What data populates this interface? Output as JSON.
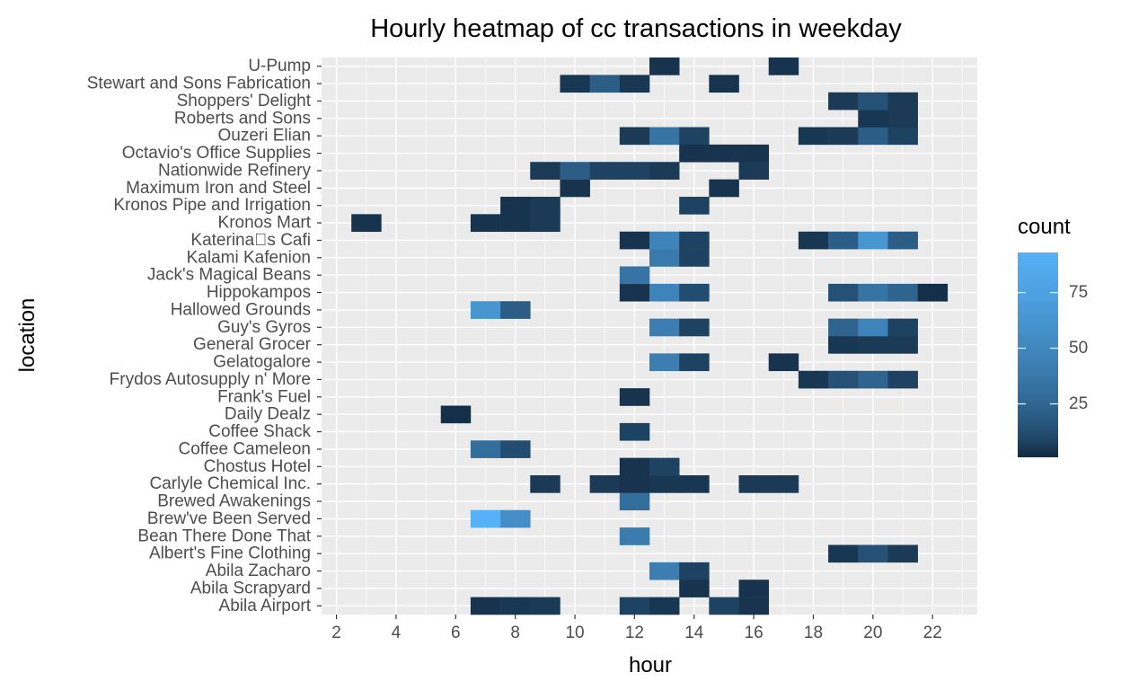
{
  "chart_data": {
    "type": "heatmap",
    "title": "Hourly heatmap of cc transactions in weekday",
    "xlabel": "hour",
    "ylabel": "location",
    "xlim": [
      1.5,
      23.5
    ],
    "x_ticks": [
      2,
      4,
      6,
      8,
      10,
      12,
      14,
      16,
      18,
      20,
      22
    ],
    "x_tick_labels": [
      "2",
      "4",
      "6",
      "8",
      "10",
      "12",
      "14",
      "16",
      "18",
      "20",
      "22"
    ],
    "categories": [
      "Abila Airport",
      "Abila Scrapyard",
      "Abila Zacharo",
      "Albert's Fine Clothing",
      "Bean There Done That",
      "Brew've Been Served",
      "Brewed Awakenings",
      "Carlyle Chemical Inc.",
      "Chostus Hotel",
      "Coffee Cameleon",
      "Coffee Shack",
      "Daily Dealz",
      "Frank's Fuel",
      "Frydos Autosupply n' More",
      "Gelatogalore",
      "General Grocer",
      "Guy's Gyros",
      "Hallowed Grounds",
      "Hippokampos",
      "Jack's Magical Beans",
      "Kalami Kafenion",
      "Katerina\u0000s Cafi",
      "Kronos Mart",
      "Kronos Pipe and Irrigation",
      "Maximum Iron and Steel",
      "Nationwide Refinery",
      "Octavio's Office Supplies",
      "Ouzeri Elian",
      "Roberts and Sons",
      "Shoppers' Delight",
      "Stewart and Sons Fabrication",
      "U-Pump"
    ],
    "legend": {
      "title": "count",
      "ticks": [
        25,
        50,
        75
      ],
      "tick_labels": [
        "25",
        "50",
        "75"
      ],
      "min": 1,
      "max": 93,
      "low_color": "#132B43",
      "high_color": "#56B1F7",
      "placement": "right"
    },
    "points": [
      {
        "location": "Abila Airport",
        "hour": 7,
        "count": 3
      },
      {
        "location": "Abila Airport",
        "hour": 8,
        "count": 4
      },
      {
        "location": "Abila Airport",
        "hour": 9,
        "count": 5
      },
      {
        "location": "Abila Airport",
        "hour": 12,
        "count": 8
      },
      {
        "location": "Abila Airport",
        "hour": 13,
        "count": 4
      },
      {
        "location": "Abila Airport",
        "hour": 15,
        "count": 8
      },
      {
        "location": "Abila Airport",
        "hour": 16,
        "count": 3
      },
      {
        "location": "Abila Scrapyard",
        "hour": 14,
        "count": 3
      },
      {
        "location": "Abila Scrapyard",
        "hour": 16,
        "count": 3
      },
      {
        "location": "Abila Zacharo",
        "hour": 13,
        "count": 42
      },
      {
        "location": "Abila Zacharo",
        "hour": 14,
        "count": 8
      },
      {
        "location": "Albert's Fine Clothing",
        "hour": 19,
        "count": 4
      },
      {
        "location": "Albert's Fine Clothing",
        "hour": 20,
        "count": 14
      },
      {
        "location": "Albert's Fine Clothing",
        "hour": 21,
        "count": 5
      },
      {
        "location": "Bean There Done That",
        "hour": 12,
        "count": 40
      },
      {
        "location": "Brew've Been Served",
        "hour": 7,
        "count": 93
      },
      {
        "location": "Brew've Been Served",
        "hour": 8,
        "count": 55
      },
      {
        "location": "Brewed Awakenings",
        "hour": 12,
        "count": 30
      },
      {
        "location": "Carlyle Chemical Inc.",
        "hour": 9,
        "count": 5
      },
      {
        "location": "Carlyle Chemical Inc.",
        "hour": 11,
        "count": 5
      },
      {
        "location": "Carlyle Chemical Inc.",
        "hour": 12,
        "count": 3
      },
      {
        "location": "Carlyle Chemical Inc.",
        "hour": 13,
        "count": 4
      },
      {
        "location": "Carlyle Chemical Inc.",
        "hour": 14,
        "count": 4
      },
      {
        "location": "Carlyle Chemical Inc.",
        "hour": 16,
        "count": 5
      },
      {
        "location": "Carlyle Chemical Inc.",
        "hour": 17,
        "count": 5
      },
      {
        "location": "Chostus Hotel",
        "hour": 12,
        "count": 3
      },
      {
        "location": "Chostus Hotel",
        "hour": 13,
        "count": 8
      },
      {
        "location": "Coffee Cameleon",
        "hour": 7,
        "count": 30
      },
      {
        "location": "Coffee Cameleon",
        "hour": 8,
        "count": 12
      },
      {
        "location": "Coffee Shack",
        "hour": 12,
        "count": 8
      },
      {
        "location": "Daily Dealz",
        "hour": 6,
        "count": 2
      },
      {
        "location": "Frank's Fuel",
        "hour": 12,
        "count": 3
      },
      {
        "location": "Frydos Autosupply n' More",
        "hour": 18,
        "count": 4
      },
      {
        "location": "Frydos Autosupply n' More",
        "hour": 19,
        "count": 14
      },
      {
        "location": "Frydos Autosupply n' More",
        "hour": 20,
        "count": 24
      },
      {
        "location": "Frydos Autosupply n' More",
        "hour": 21,
        "count": 8
      },
      {
        "location": "Gelatogalore",
        "hour": 13,
        "count": 42
      },
      {
        "location": "Gelatogalore",
        "hour": 14,
        "count": 8
      },
      {
        "location": "Gelatogalore",
        "hour": 17,
        "count": 3
      },
      {
        "location": "General Grocer",
        "hour": 19,
        "count": 4
      },
      {
        "location": "General Grocer",
        "hour": 20,
        "count": 5
      },
      {
        "location": "General Grocer",
        "hour": 21,
        "count": 5
      },
      {
        "location": "Guy's Gyros",
        "hour": 13,
        "count": 42
      },
      {
        "location": "Guy's Gyros",
        "hour": 14,
        "count": 8
      },
      {
        "location": "Guy's Gyros",
        "hour": 19,
        "count": 24
      },
      {
        "location": "Guy's Gyros",
        "hour": 20,
        "count": 46
      },
      {
        "location": "Guy's Gyros",
        "hour": 21,
        "count": 8
      },
      {
        "location": "Hallowed Grounds",
        "hour": 7,
        "count": 62
      },
      {
        "location": "Hallowed Grounds",
        "hour": 8,
        "count": 20
      },
      {
        "location": "Hippokampos",
        "hour": 12,
        "count": 3
      },
      {
        "location": "Hippokampos",
        "hour": 13,
        "count": 46
      },
      {
        "location": "Hippokampos",
        "hour": 14,
        "count": 12
      },
      {
        "location": "Hippokampos",
        "hour": 19,
        "count": 14
      },
      {
        "location": "Hippokampos",
        "hour": 20,
        "count": 34
      },
      {
        "location": "Hippokampos",
        "hour": 21,
        "count": 24
      },
      {
        "location": "Hippokampos",
        "hour": 22,
        "count": 2
      },
      {
        "location": "Jack's Magical Beans",
        "hour": 12,
        "count": 34
      },
      {
        "location": "Kalami Kafenion",
        "hour": 13,
        "count": 38
      },
      {
        "location": "Kalami Kafenion",
        "hour": 14,
        "count": 8
      },
      {
        "location": "Katerina\u0000s Cafi",
        "hour": 12,
        "count": 3
      },
      {
        "location": "Katerina\u0000s Cafi",
        "hour": 13,
        "count": 46
      },
      {
        "location": "Katerina\u0000s Cafi",
        "hour": 14,
        "count": 8
      },
      {
        "location": "Katerina\u0000s Cafi",
        "hour": 18,
        "count": 4
      },
      {
        "location": "Katerina\u0000s Cafi",
        "hour": 19,
        "count": 20
      },
      {
        "location": "Katerina\u0000s Cafi",
        "hour": 20,
        "count": 62
      },
      {
        "location": "Katerina\u0000s Cafi",
        "hour": 21,
        "count": 20
      },
      {
        "location": "Kronos Mart",
        "hour": 3,
        "count": 3
      },
      {
        "location": "Kronos Mart",
        "hour": 7,
        "count": 3
      },
      {
        "location": "Kronos Mart",
        "hour": 8,
        "count": 3
      },
      {
        "location": "Kronos Mart",
        "hour": 9,
        "count": 5
      },
      {
        "location": "Kronos Pipe and Irrigation",
        "hour": 8,
        "count": 3
      },
      {
        "location": "Kronos Pipe and Irrigation",
        "hour": 9,
        "count": 5
      },
      {
        "location": "Kronos Pipe and Irrigation",
        "hour": 14,
        "count": 8
      },
      {
        "location": "Maximum Iron and Steel",
        "hour": 10,
        "count": 3
      },
      {
        "location": "Maximum Iron and Steel",
        "hour": 15,
        "count": 3
      },
      {
        "location": "Nationwide Refinery",
        "hour": 9,
        "count": 5
      },
      {
        "location": "Nationwide Refinery",
        "hour": 10,
        "count": 20
      },
      {
        "location": "Nationwide Refinery",
        "hour": 11,
        "count": 8
      },
      {
        "location": "Nationwide Refinery",
        "hour": 12,
        "count": 8
      },
      {
        "location": "Nationwide Refinery",
        "hour": 13,
        "count": 5
      },
      {
        "location": "Nationwide Refinery",
        "hour": 16,
        "count": 5
      },
      {
        "location": "Octavio's Office Supplies",
        "hour": 14,
        "count": 3
      },
      {
        "location": "Octavio's Office Supplies",
        "hour": 15,
        "count": 3
      },
      {
        "location": "Octavio's Office Supplies",
        "hour": 16,
        "count": 3
      },
      {
        "location": "Ouzeri Elian",
        "hour": 12,
        "count": 5
      },
      {
        "location": "Ouzeri Elian",
        "hour": 13,
        "count": 34
      },
      {
        "location": "Ouzeri Elian",
        "hour": 14,
        "count": 8
      },
      {
        "location": "Ouzeri Elian",
        "hour": 18,
        "count": 4
      },
      {
        "location": "Ouzeri Elian",
        "hour": 19,
        "count": 5
      },
      {
        "location": "Ouzeri Elian",
        "hour": 20,
        "count": 20
      },
      {
        "location": "Ouzeri Elian",
        "hour": 21,
        "count": 8
      },
      {
        "location": "Roberts and Sons",
        "hour": 20,
        "count": 4
      },
      {
        "location": "Roberts and Sons",
        "hour": 21,
        "count": 5
      },
      {
        "location": "Shoppers' Delight",
        "hour": 19,
        "count": 5
      },
      {
        "location": "Shoppers' Delight",
        "hour": 20,
        "count": 14
      },
      {
        "location": "Shoppers' Delight",
        "hour": 21,
        "count": 5
      },
      {
        "location": "Stewart and Sons Fabrication",
        "hour": 10,
        "count": 4
      },
      {
        "location": "Stewart and Sons Fabrication",
        "hour": 11,
        "count": 20
      },
      {
        "location": "Stewart and Sons Fabrication",
        "hour": 12,
        "count": 4
      },
      {
        "location": "Stewart and Sons Fabrication",
        "hour": 15,
        "count": 3
      },
      {
        "location": "U-Pump",
        "hour": 13,
        "count": 3
      },
      {
        "location": "U-Pump",
        "hour": 17,
        "count": 3
      }
    ]
  }
}
